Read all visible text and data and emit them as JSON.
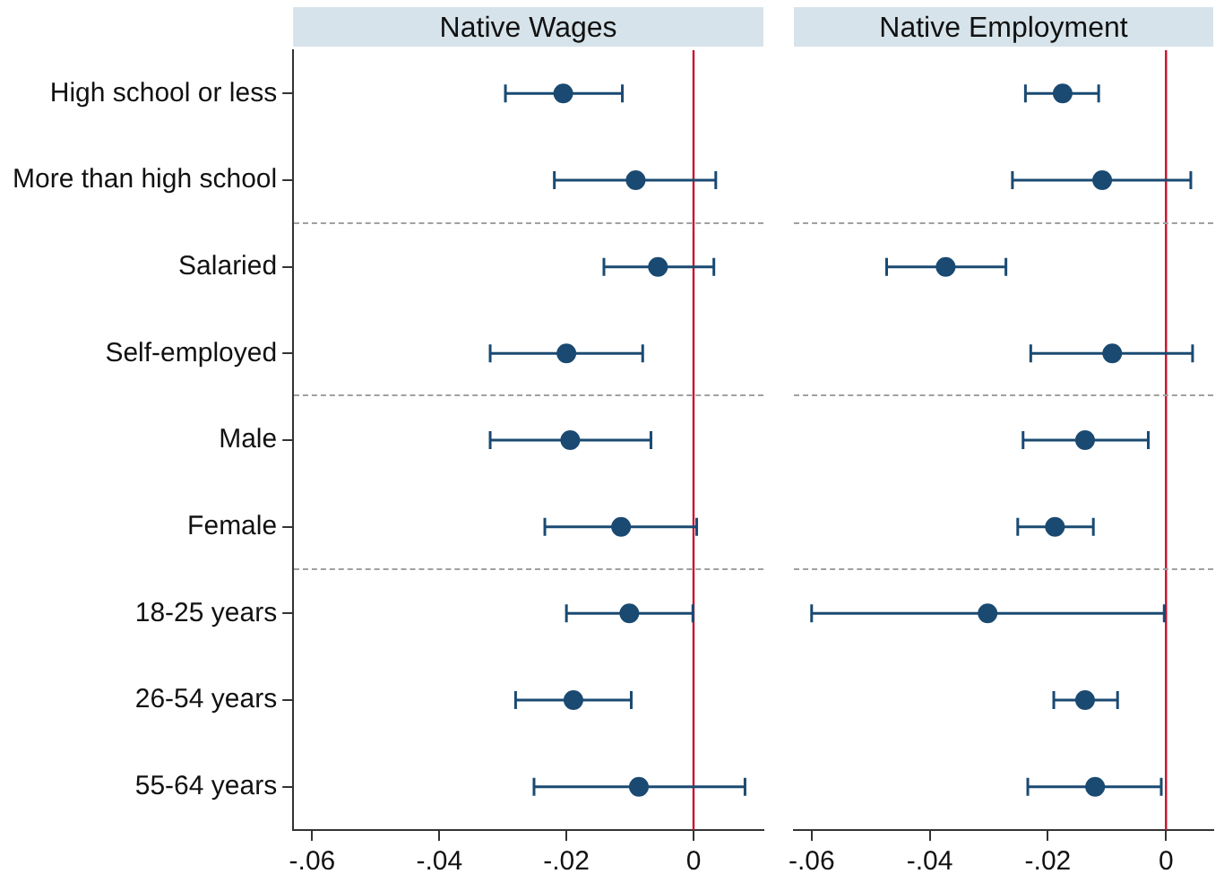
{
  "chart_data": [
    {
      "type": "scatter",
      "title": "Native Wages",
      "orientation": "horizontal",
      "categories": [
        "High school or less",
        "More than high school",
        "Salaried",
        "Self-employed",
        "Male",
        "Female",
        "18-25 years",
        "26-54 years",
        "55-64 years"
      ],
      "series": [
        {
          "color": "#1a4a72",
          "values": [
            -0.0205,
            -0.0091,
            -0.0056,
            -0.02,
            -0.0194,
            -0.0114,
            -0.0101,
            -0.0189,
            -0.0086
          ],
          "errors": [
            [
              -0.0296,
              -0.0112
            ],
            [
              -0.0219,
              0.0035
            ],
            [
              -0.0141,
              0.0032
            ],
            [
              -0.032,
              -0.008
            ],
            [
              -0.032,
              -0.0067
            ],
            [
              -0.0234,
              0.0005
            ],
            [
              -0.02,
              -0.0001
            ],
            [
              -0.028,
              -0.0098
            ],
            [
              -0.0251,
              0.0081
            ]
          ]
        }
      ],
      "xlim": [
        -0.063,
        0.011
      ],
      "xticks": [
        {
          "value": -0.06,
          "label": "-.06"
        },
        {
          "value": -0.04,
          "label": "-.04"
        },
        {
          "value": -0.02,
          "label": "-.02"
        },
        0
      ],
      "ref_lines": [
        {
          "axis": "x",
          "value": 0,
          "color": "#c8102e"
        }
      ],
      "marker": "circle",
      "grid": false,
      "legend": false
    },
    {
      "type": "scatter",
      "title": "Native Employment",
      "orientation": "horizontal",
      "categories": [
        null,
        null,
        null,
        null,
        null,
        null,
        null,
        null,
        null
      ],
      "series": [
        {
          "color": "#1a4a72",
          "values": [
            -0.0175,
            -0.0108,
            -0.0373,
            -0.0091,
            -0.0137,
            -0.0188,
            -0.0302,
            -0.0137,
            -0.012
          ],
          "errors": [
            [
              -0.0238,
              -0.0114
            ],
            [
              -0.026,
              0.0042
            ],
            [
              -0.0473,
              -0.0271
            ],
            [
              -0.0229,
              0.0045
            ],
            [
              -0.0242,
              -0.003
            ],
            [
              -0.0251,
              -0.0123
            ],
            [
              -0.06,
              -0.0003
            ],
            [
              -0.019,
              -0.0082
            ],
            [
              -0.0234,
              -0.0008
            ]
          ]
        }
      ],
      "xlim": [
        -0.063,
        0.008
      ],
      "xticks": [
        {
          "value": -0.06,
          "label": "-.06"
        },
        {
          "value": -0.04,
          "label": "-.04"
        },
        {
          "value": -0.02,
          "label": "-.02"
        },
        0
      ],
      "ref_lines": [
        {
          "axis": "x",
          "value": 0,
          "color": "#c8102e"
        }
      ],
      "marker": "circle",
      "grid": false,
      "legend": false,
      "tick_labels": "x"
    }
  ]
}
